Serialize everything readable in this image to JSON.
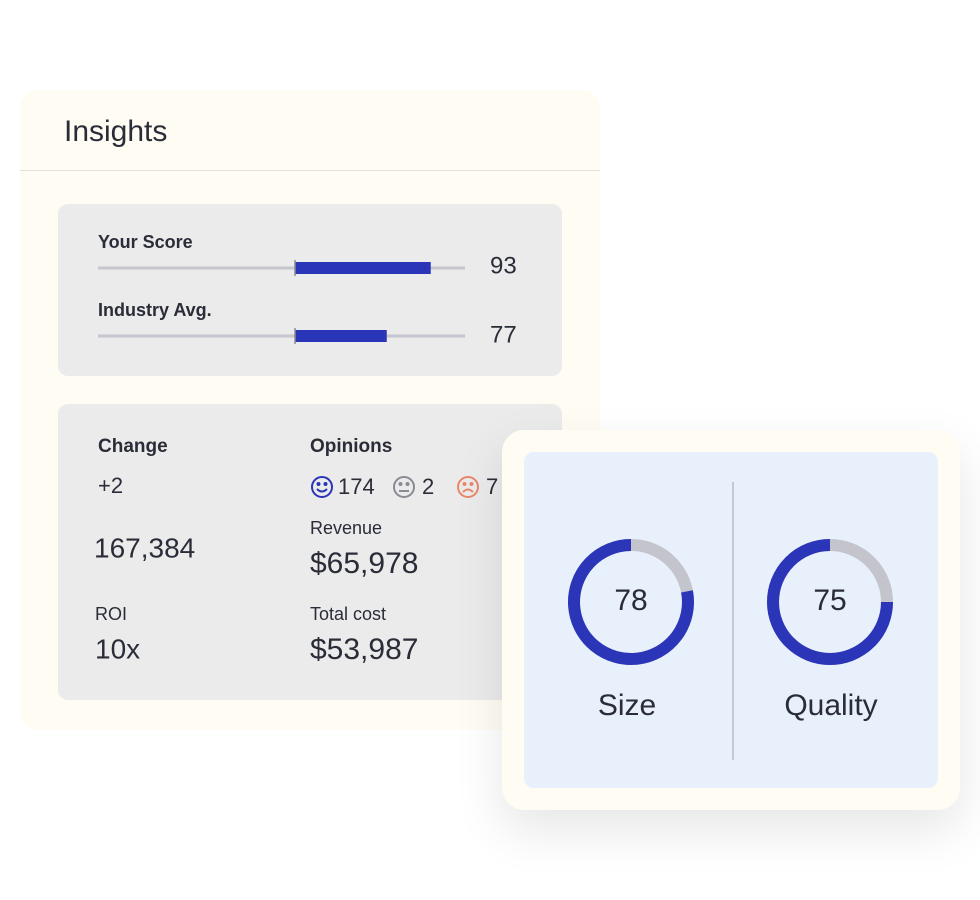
{
  "header": {
    "title": "Insights"
  },
  "scores": [
    {
      "label": "Your Score",
      "value": 93
    },
    {
      "label": "Industry Avg.",
      "value": 77
    }
  ],
  "stats": {
    "change": {
      "label": "Change",
      "value": "+2"
    },
    "total": "167,384",
    "roi": {
      "label": "ROI",
      "value": "10x"
    },
    "opinions": {
      "label": "Opinions",
      "positive": 174,
      "neutral": 2,
      "negative": 7
    },
    "revenue": {
      "label": "Revenue",
      "value": "$65,978"
    },
    "total_cost": {
      "label": "Total cost",
      "value": "$53,987"
    }
  },
  "donuts": [
    {
      "label": "Size",
      "value": 78
    },
    {
      "label": "Quality",
      "value": 75
    }
  ]
}
